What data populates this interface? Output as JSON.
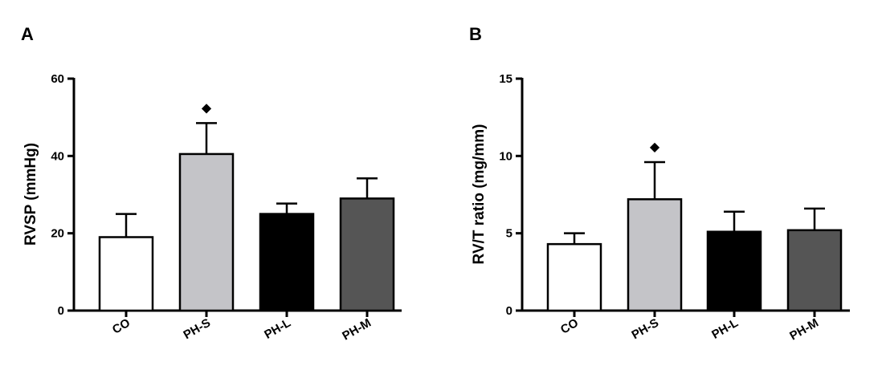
{
  "chart_data": [
    {
      "panel": "A",
      "type": "bar",
      "ylabel": "RVSP (mmHg)",
      "ylim": [
        0,
        60
      ],
      "yticks": [
        "0",
        "20",
        "40",
        "60"
      ],
      "categories": [
        "CO",
        "PH-S",
        "PH-L",
        "PH-M"
      ],
      "values": [
        19,
        40.5,
        25,
        29
      ],
      "errors": [
        6,
        8,
        2.7,
        5.2
      ],
      "bar_colors": [
        "#ffffff",
        "#c4c4c8",
        "#000000",
        "#555555"
      ],
      "annotation": {
        "symbol": "◆",
        "category": "PH-S"
      },
      "grid": false
    },
    {
      "panel": "B",
      "type": "bar",
      "ylabel": "RV/T ratio (mg/mm)",
      "ylim": [
        0,
        15
      ],
      "yticks": [
        "0",
        "5",
        "10",
        "15"
      ],
      "categories": [
        "CO",
        "PH-S",
        "PH-L",
        "PH-M"
      ],
      "values": [
        4.3,
        7.2,
        5.1,
        5.2
      ],
      "errors": [
        0.7,
        2.4,
        1.3,
        1.4
      ],
      "bar_colors": [
        "#ffffff",
        "#c4c4c8",
        "#000000",
        "#555555"
      ],
      "annotation": {
        "symbol": "◆",
        "category": "PH-S"
      },
      "grid": false
    }
  ]
}
